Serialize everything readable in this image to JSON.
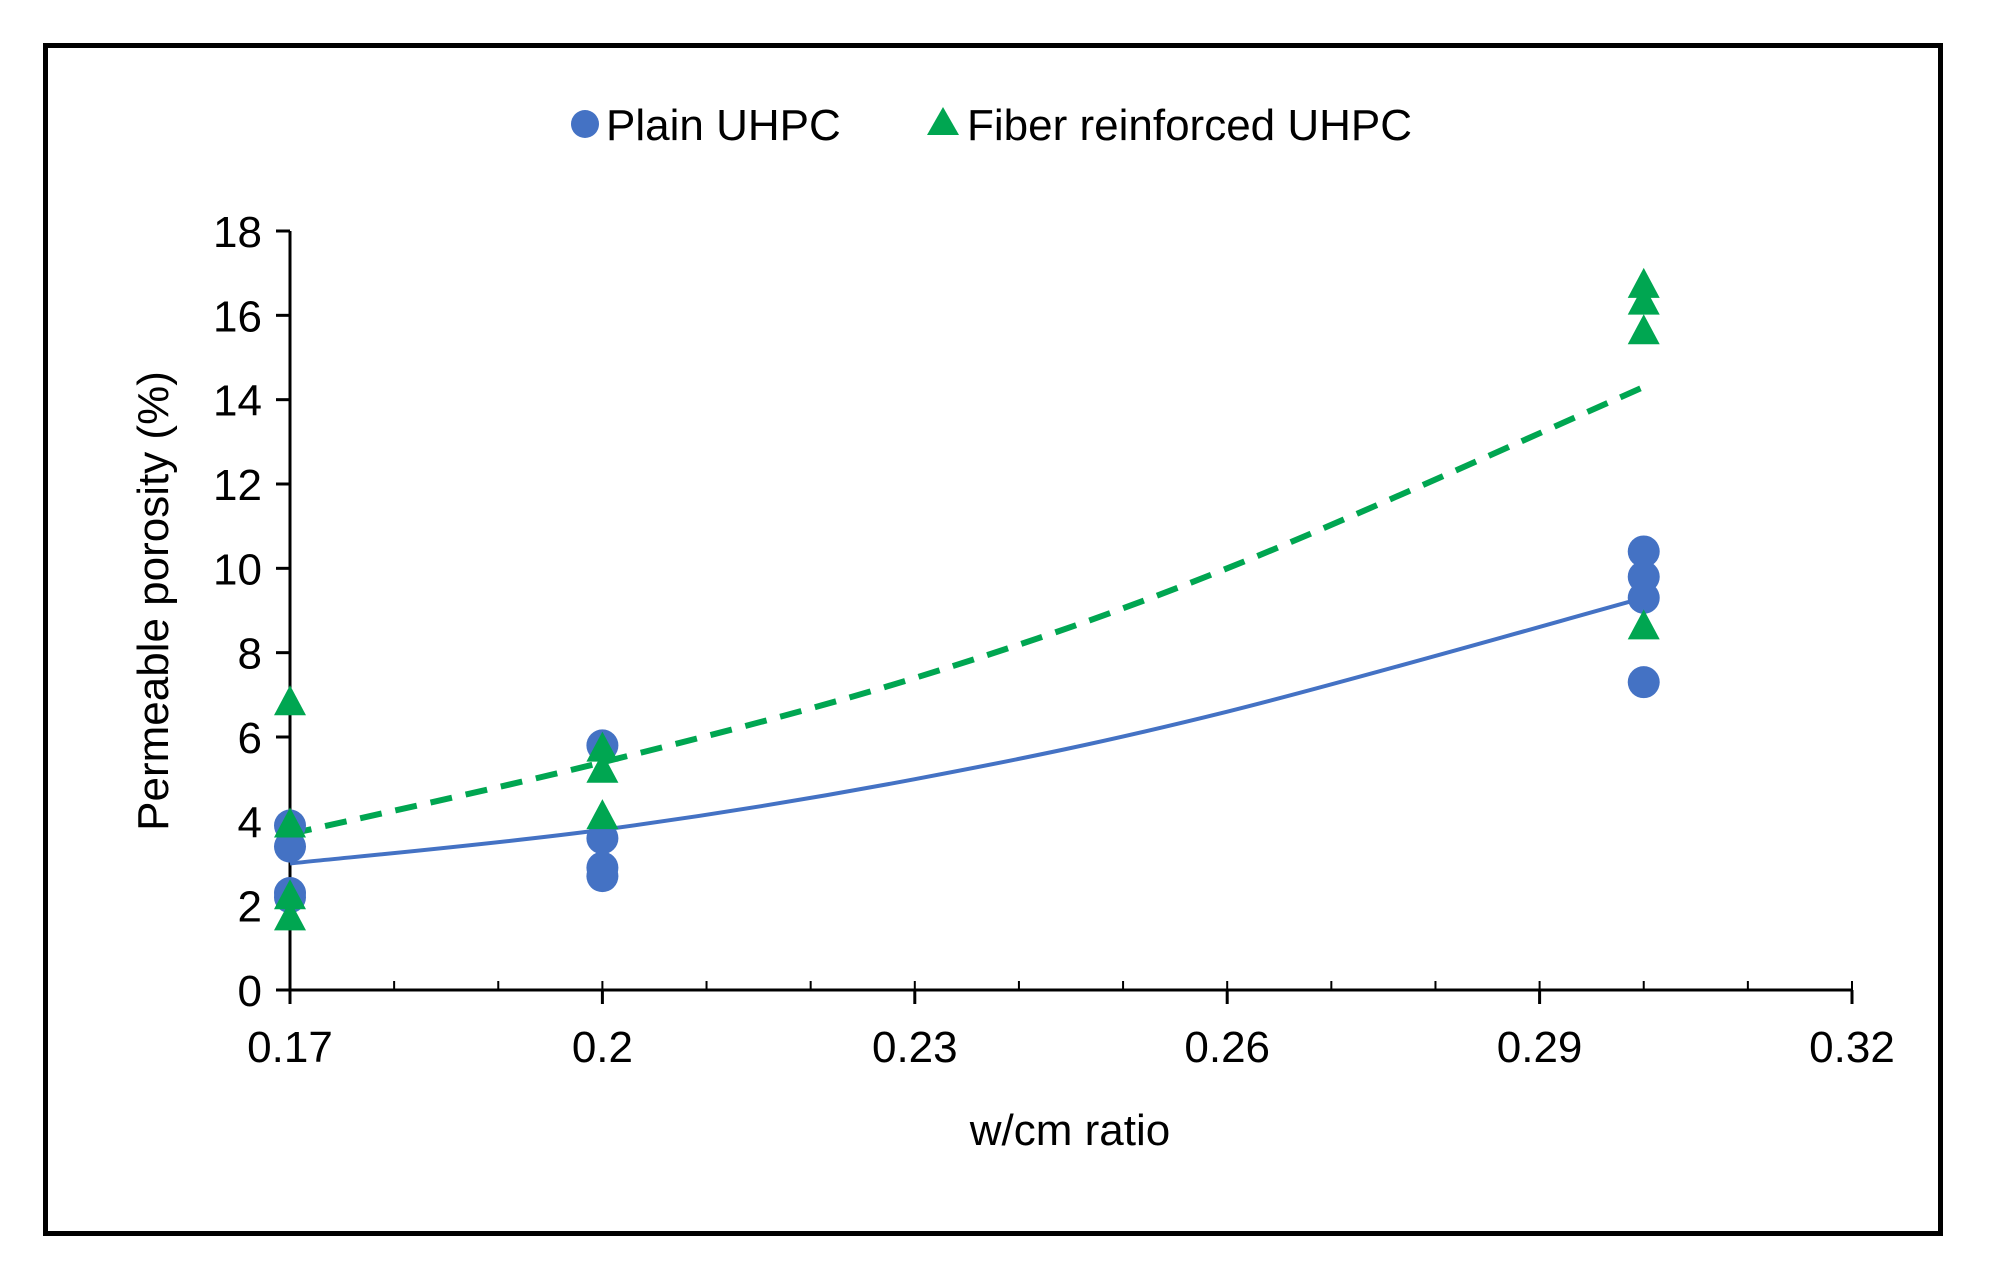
{
  "chart_data": {
    "type": "scatter",
    "title": "",
    "xlabel": "w/cm ratio",
    "ylabel": "Permeable porosity (%)",
    "xlim": [
      0.17,
      0.32
    ],
    "ylim": [
      0,
      18
    ],
    "x_ticks": [
      0.17,
      0.2,
      0.23,
      0.26,
      0.29,
      0.32
    ],
    "x_tick_labels": [
      "0.17",
      "0.2",
      "0.23",
      "0.26",
      "0.29",
      "0.32"
    ],
    "y_ticks": [
      0,
      2,
      4,
      6,
      8,
      10,
      12,
      14,
      16,
      18
    ],
    "y_tick_labels": [
      "0",
      "2",
      "4",
      "6",
      "8",
      "10",
      "12",
      "14",
      "16",
      "18"
    ],
    "x_minor_step": 0.01,
    "grid": false,
    "legend_position": "top-center",
    "series": [
      {
        "name": "Plain UHPC",
        "marker": "circle",
        "color": "#4472C4",
        "points": [
          {
            "x": 0.17,
            "y": 3.9
          },
          {
            "x": 0.17,
            "y": 3.4
          },
          {
            "x": 0.17,
            "y": 2.3
          },
          {
            "x": 0.17,
            "y": 2.2
          },
          {
            "x": 0.2,
            "y": 5.8
          },
          {
            "x": 0.2,
            "y": 3.6
          },
          {
            "x": 0.2,
            "y": 2.9
          },
          {
            "x": 0.2,
            "y": 2.7
          },
          {
            "x": 0.3,
            "y": 10.4
          },
          {
            "x": 0.3,
            "y": 9.8
          },
          {
            "x": 0.3,
            "y": 9.3
          },
          {
            "x": 0.3,
            "y": 7.3
          }
        ],
        "trendline": {
          "style": "solid",
          "type": "exponential",
          "x": [
            0.17,
            0.2,
            0.23,
            0.26,
            0.3
          ],
          "y": [
            3.0,
            3.8,
            5.0,
            6.6,
            9.3
          ]
        }
      },
      {
        "name": "Fiber reinforced UHPC",
        "marker": "triangle",
        "color": "#00A651",
        "points": [
          {
            "x": 0.17,
            "y": 6.8
          },
          {
            "x": 0.17,
            "y": 3.9
          },
          {
            "x": 0.17,
            "y": 2.2
          },
          {
            "x": 0.17,
            "y": 1.7
          },
          {
            "x": 0.2,
            "y": 5.7
          },
          {
            "x": 0.2,
            "y": 5.2
          },
          {
            "x": 0.2,
            "y": 4.1
          },
          {
            "x": 0.3,
            "y": 16.7
          },
          {
            "x": 0.3,
            "y": 16.3
          },
          {
            "x": 0.3,
            "y": 15.6
          },
          {
            "x": 0.3,
            "y": 8.6
          }
        ],
        "trendline": {
          "style": "dashed",
          "type": "exponential",
          "x": [
            0.17,
            0.2,
            0.23,
            0.26,
            0.3
          ],
          "y": [
            3.7,
            5.4,
            7.4,
            10.0,
            14.3
          ]
        }
      }
    ]
  }
}
